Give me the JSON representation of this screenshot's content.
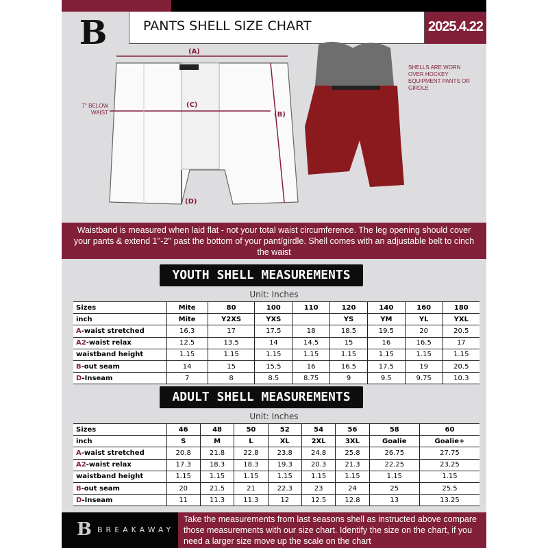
{
  "header": {
    "title": "PANTS SHELL SIZE CHART",
    "date": "2025.4.22",
    "logo_letter": "B"
  },
  "diagram": {
    "label_a": "(A)",
    "label_b": "(B)",
    "label_c": "(C)",
    "label_d": "(D)",
    "below_waist": "7'' BELOW WAIST",
    "note": "SHELLS ARE WORN OVER HOCKEY EQUIPMENT PANTS OR GIRDLE"
  },
  "info": "Waistband is measured when laid flat - not your total waist circumference. The leg opening should cover your pants & extend 1''-2'' past the bottom of your pant/girdle. Shell comes with an adjustable belt to cinch the waist",
  "youth": {
    "title": "YOUTH SHELL MEASUREMENTS",
    "unit": "Unit: Inches",
    "rows": [
      {
        "prefix": "",
        "label": "Sizes",
        "values": [
          "Mite",
          "80",
          "100",
          "110",
          "120",
          "140",
          "160",
          "180"
        ]
      },
      {
        "prefix": "",
        "label": "inch",
        "values": [
          "Mite",
          "Y2XS",
          "YXS",
          "",
          "YS",
          "YM",
          "YL",
          "YXL"
        ]
      },
      {
        "prefix": "A",
        "label": "-waist stretched",
        "values": [
          "16.3",
          "17",
          "17.5",
          "18",
          "18.5",
          "19.5",
          "20",
          "20.5"
        ]
      },
      {
        "prefix": "A2",
        "label": "-waist relax",
        "values": [
          "12.5",
          "13.5",
          "14",
          "14.5",
          "15",
          "16",
          "16.5",
          "17"
        ]
      },
      {
        "prefix": "",
        "label": "waistband height",
        "values": [
          "1.15",
          "1.15",
          "1.15",
          "1.15",
          "1.15",
          "1.15",
          "1.15",
          "1.15"
        ]
      },
      {
        "prefix": "B",
        "label": "-out seam",
        "values": [
          "14",
          "15",
          "15.5",
          "16",
          "16.5",
          "17.5",
          "19",
          "20.5"
        ]
      },
      {
        "prefix": "D",
        "label": "-Inseam",
        "values": [
          "7",
          "8",
          "8.5",
          "8.75",
          "9",
          "9.5",
          "9.75",
          "10.3"
        ]
      }
    ]
  },
  "adult": {
    "title": "ADULT SHELL MEASUREMENTS",
    "unit": "Unit: Inches",
    "rows": [
      {
        "prefix": "",
        "label": "Sizes",
        "values": [
          "46",
          "48",
          "50",
          "52",
          "54",
          "56",
          "58",
          "60"
        ]
      },
      {
        "prefix": "",
        "label": "inch",
        "values": [
          "S",
          "M",
          "L",
          "XL",
          "2XL",
          "3XL",
          "Goalie",
          "Goalie+"
        ]
      },
      {
        "prefix": "A",
        "label": "-waist stretched",
        "values": [
          "20.8",
          "21.8",
          "22.8",
          "23.8",
          "24.8",
          "25.8",
          "26.75",
          "27.75"
        ]
      },
      {
        "prefix": "A2",
        "label": "-waist relax",
        "values": [
          "17.3",
          "18.3",
          "18.3",
          "19.3",
          "20.3",
          "21.3",
          "22.25",
          "23.25"
        ]
      },
      {
        "prefix": "",
        "label": "waistband height",
        "values": [
          "1.15",
          "1.15",
          "1.15",
          "1.15",
          "1.15",
          "1.15",
          "1.15",
          "1.15"
        ]
      },
      {
        "prefix": "B",
        "label": "-out seam",
        "values": [
          "20",
          "21.5",
          "21",
          "22.3",
          "23",
          "24",
          "25",
          "25.5"
        ]
      },
      {
        "prefix": "D",
        "label": "-Inseam",
        "values": [
          "11",
          "11.3",
          "11.3",
          "12",
          "12.5",
          "12.8",
          "13",
          "13.25"
        ]
      }
    ]
  },
  "footer": {
    "brand": "BREAKAWAY",
    "text": "Take the measurements from last seasons shell as instructed above compare those measurements  with our size chart. Identify the size on the chart, if you need a larger size move up the scale on the chart"
  },
  "colors": {
    "accent": "#82203a",
    "dark": "#0d0d0d",
    "background": "#dddde0"
  }
}
